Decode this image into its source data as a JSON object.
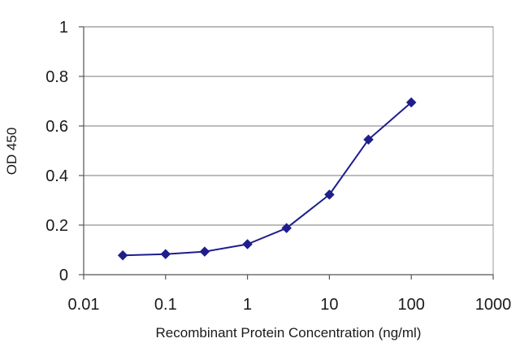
{
  "chart_data": {
    "type": "line",
    "title": "",
    "xlabel": "Recombinant Protein Concentration (ng/ml)",
    "ylabel": "OD 450",
    "x_scale": "log",
    "xlim": [
      0.01,
      1000
    ],
    "ylim": [
      0,
      1
    ],
    "grid": true,
    "x_ticks": [
      {
        "value": 0.01,
        "label": "0.01"
      },
      {
        "value": 0.1,
        "label": "0.1"
      },
      {
        "value": 1,
        "label": "1"
      },
      {
        "value": 10,
        "label": "10"
      },
      {
        "value": 100,
        "label": "100"
      },
      {
        "value": 1000,
        "label": "1000"
      }
    ],
    "y_ticks": [
      {
        "value": 0,
        "label": "0"
      },
      {
        "value": 0.2,
        "label": "0.2"
      },
      {
        "value": 0.4,
        "label": "0.4"
      },
      {
        "value": 0.6,
        "label": "0.6"
      },
      {
        "value": 0.8,
        "label": "0.8"
      },
      {
        "value": 1,
        "label": "1"
      }
    ],
    "series": [
      {
        "color": "#1e1e8c",
        "marker": "diamond",
        "x": [
          0.03,
          0.1,
          0.3,
          1,
          3,
          10,
          30,
          100
        ],
        "y": [
          0.078,
          0.083,
          0.093,
          0.123,
          0.188,
          0.323,
          0.545,
          0.695
        ]
      }
    ]
  }
}
